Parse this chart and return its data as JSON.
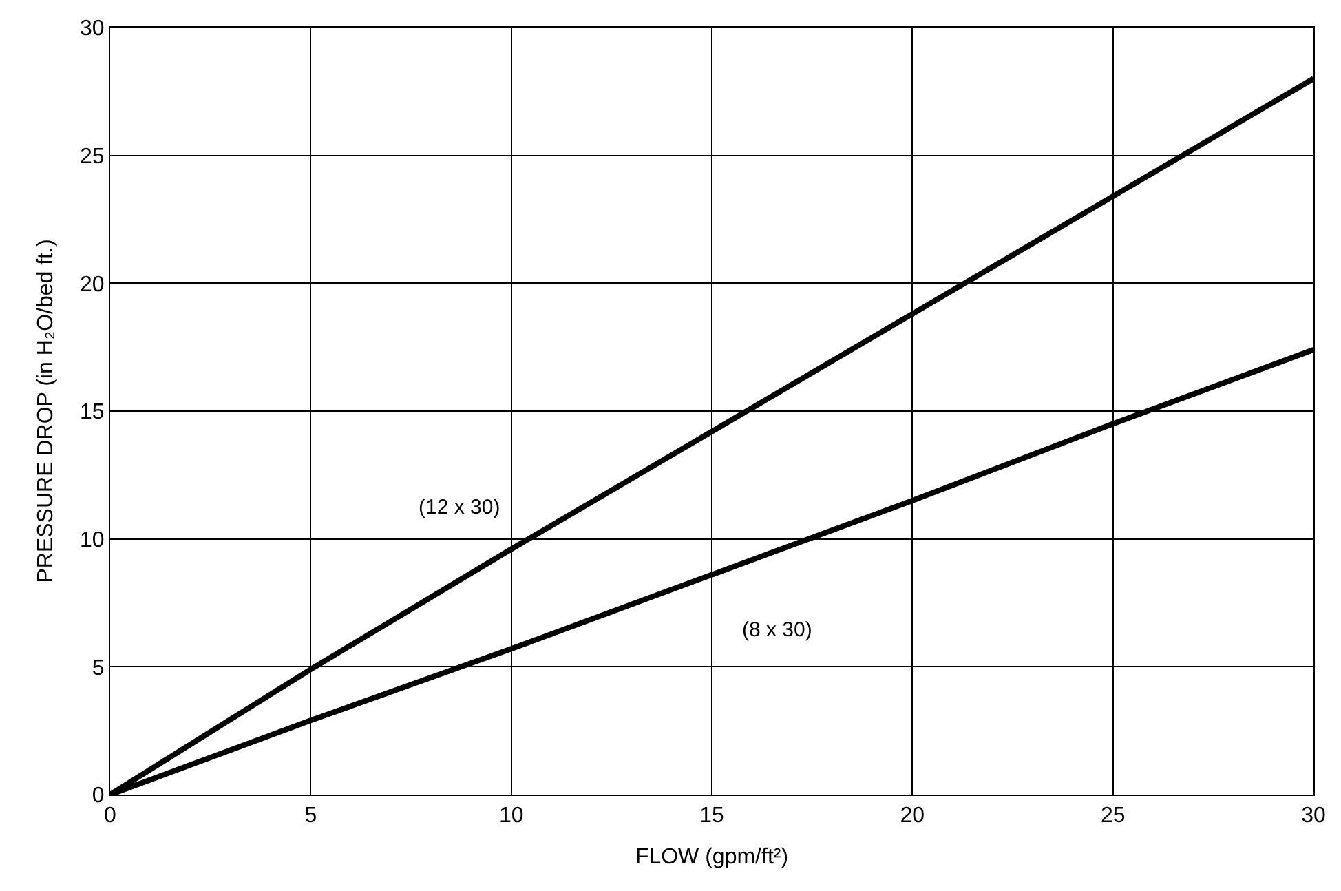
{
  "chart_data": {
    "type": "line",
    "xlabel": "FLOW (gpm/ft²)",
    "ylabel": "PRESSURE DROP (in H₂O/bed ft.)",
    "x": [
      0,
      5,
      10,
      15,
      20,
      25,
      30
    ],
    "series": [
      {
        "name": "(12 x 30)",
        "color": "#000000",
        "values": [
          0,
          4.9,
          9.6,
          14.2,
          18.8,
          23.4,
          28
        ]
      },
      {
        "name": "(8 x 30)",
        "color": "#000000",
        "values": [
          0,
          2.9,
          5.7,
          8.6,
          11.5,
          14.5,
          17.4
        ]
      }
    ],
    "xlim": [
      0,
      30
    ],
    "ylim": [
      0,
      30
    ],
    "xticks": [
      0,
      5,
      10,
      15,
      20,
      25,
      30
    ],
    "yticks": [
      0,
      5,
      10,
      15,
      20,
      25,
      30
    ],
    "grid": true,
    "legend": false,
    "marker": "none",
    "line_style": "solid"
  }
}
